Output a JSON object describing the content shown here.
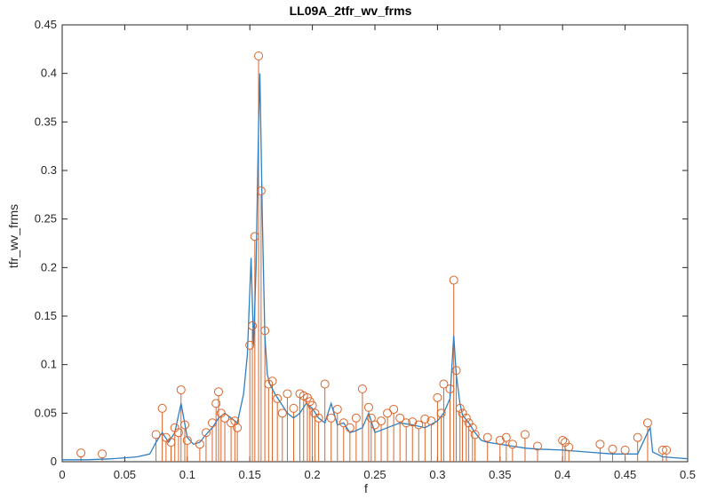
{
  "chart_data": {
    "type": "line",
    "title": "LL09A_2tfr_wv_frms",
    "xlabel": "f",
    "ylabel": "tfr_wv_frms",
    "xlim": [
      0,
      0.5
    ],
    "ylim": [
      0,
      0.45
    ],
    "xticks": [
      "0",
      "0.05",
      "0.1",
      "0.15",
      "0.2",
      "0.25",
      "0.3",
      "0.35",
      "0.4",
      "0.45",
      "0.5"
    ],
    "yticks": [
      "0",
      "0.05",
      "0.1",
      "0.15",
      "0.2",
      "0.25",
      "0.3",
      "0.35",
      "0.4",
      "0.45"
    ],
    "grid": false,
    "legend": "none",
    "colors": {
      "line": "#2f7fc1",
      "peaks": "#d9652b",
      "axis": "#262626"
    },
    "series": [
      {
        "type": "line",
        "x": [
          0.0,
          0.02,
          0.04,
          0.05,
          0.06,
          0.07,
          0.075,
          0.08,
          0.085,
          0.09,
          0.095,
          0.1,
          0.105,
          0.11,
          0.115,
          0.12,
          0.125,
          0.13,
          0.135,
          0.14,
          0.145,
          0.148,
          0.151,
          0.153,
          0.155,
          0.157,
          0.158,
          0.16,
          0.162,
          0.164,
          0.166,
          0.17,
          0.175,
          0.18,
          0.185,
          0.19,
          0.195,
          0.2,
          0.205,
          0.21,
          0.215,
          0.22,
          0.225,
          0.23,
          0.235,
          0.24,
          0.245,
          0.25,
          0.26,
          0.27,
          0.28,
          0.29,
          0.3,
          0.305,
          0.31,
          0.313,
          0.315,
          0.318,
          0.32,
          0.325,
          0.33,
          0.335,
          0.34,
          0.35,
          0.36,
          0.37,
          0.38,
          0.4,
          0.42,
          0.44,
          0.46,
          0.468,
          0.47,
          0.472,
          0.48,
          0.49,
          0.5
        ],
        "y": [
          0.002,
          0.002,
          0.003,
          0.004,
          0.005,
          0.008,
          0.02,
          0.03,
          0.02,
          0.03,
          0.06,
          0.025,
          0.018,
          0.02,
          0.028,
          0.035,
          0.045,
          0.05,
          0.045,
          0.04,
          0.07,
          0.11,
          0.21,
          0.12,
          0.2,
          0.35,
          0.4,
          0.25,
          0.13,
          0.09,
          0.08,
          0.07,
          0.06,
          0.05,
          0.045,
          0.05,
          0.06,
          0.055,
          0.045,
          0.04,
          0.06,
          0.038,
          0.04,
          0.03,
          0.032,
          0.035,
          0.05,
          0.03,
          0.035,
          0.04,
          0.038,
          0.035,
          0.042,
          0.05,
          0.065,
          0.13,
          0.09,
          0.06,
          0.048,
          0.04,
          0.03,
          0.022,
          0.02,
          0.018,
          0.016,
          0.014,
          0.013,
          0.012,
          0.01,
          0.008,
          0.008,
          0.03,
          0.035,
          0.01,
          0.005,
          0.004,
          0.003
        ]
      },
      {
        "type": "stem",
        "x": [
          0.015,
          0.032,
          0.075,
          0.08,
          0.083,
          0.087,
          0.09,
          0.093,
          0.095,
          0.098,
          0.1,
          0.11,
          0.115,
          0.12,
          0.123,
          0.125,
          0.127,
          0.13,
          0.135,
          0.138,
          0.14,
          0.15,
          0.152,
          0.154,
          0.157,
          0.159,
          0.162,
          0.165,
          0.168,
          0.172,
          0.176,
          0.18,
          0.185,
          0.19,
          0.193,
          0.196,
          0.198,
          0.2,
          0.202,
          0.205,
          0.21,
          0.215,
          0.22,
          0.225,
          0.23,
          0.235,
          0.24,
          0.245,
          0.247,
          0.25,
          0.255,
          0.26,
          0.265,
          0.27,
          0.275,
          0.28,
          0.285,
          0.29,
          0.295,
          0.3,
          0.303,
          0.305,
          0.31,
          0.313,
          0.315,
          0.318,
          0.32,
          0.323,
          0.325,
          0.328,
          0.33,
          0.34,
          0.35,
          0.355,
          0.36,
          0.37,
          0.38,
          0.4,
          0.402,
          0.405,
          0.43,
          0.44,
          0.45,
          0.46,
          0.468,
          0.48,
          0.483
        ],
        "y": [
          0.009,
          0.008,
          0.028,
          0.055,
          0.025,
          0.02,
          0.035,
          0.03,
          0.074,
          0.038,
          0.022,
          0.018,
          0.03,
          0.04,
          0.06,
          0.072,
          0.05,
          0.045,
          0.04,
          0.042,
          0.035,
          0.12,
          0.14,
          0.232,
          0.418,
          0.279,
          0.135,
          0.08,
          0.083,
          0.065,
          0.05,
          0.07,
          0.055,
          0.07,
          0.068,
          0.066,
          0.062,
          0.058,
          0.05,
          0.045,
          0.08,
          0.045,
          0.054,
          0.04,
          0.035,
          0.045,
          0.075,
          0.056,
          0.045,
          0.038,
          0.042,
          0.05,
          0.054,
          0.045,
          0.04,
          0.041,
          0.038,
          0.044,
          0.042,
          0.066,
          0.05,
          0.08,
          0.075,
          0.187,
          0.094,
          0.055,
          0.05,
          0.045,
          0.04,
          0.035,
          0.028,
          0.025,
          0.022,
          0.025,
          0.018,
          0.028,
          0.016,
          0.022,
          0.02,
          0.015,
          0.018,
          0.013,
          0.012,
          0.025,
          0.04,
          0.012,
          0.012
        ]
      }
    ]
  }
}
